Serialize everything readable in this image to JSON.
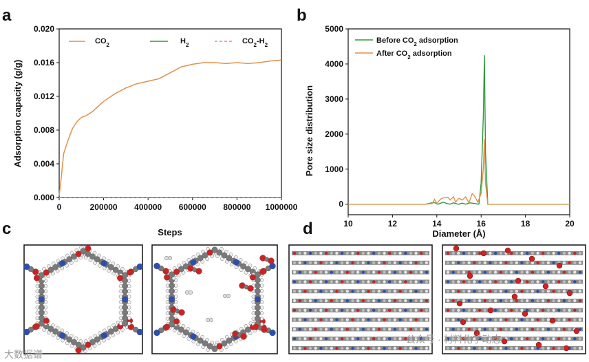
{
  "panel_labels": {
    "a": "a",
    "b": "b",
    "c": "c",
    "d": "d"
  },
  "colors": {
    "co2": "#e0904a",
    "h2": "#2e9a3c",
    "mix": "#e87aa8",
    "axis": "#111111",
    "carbon": "#7a7a7a",
    "oxygen": "#cc2222",
    "nitrogen": "#2a4fb0",
    "hydrogen": "#eeeeee",
    "h2gas": "#dddddd"
  },
  "watermark": {
    "left": "大数据谱",
    "right": "公众号 · 材料化学动态"
  },
  "chart_data": [
    {
      "id": "panel-a",
      "type": "line",
      "title": "",
      "xlabel": "Steps",
      "ylabel": "Adsorption capacity (g/g)",
      "xlim": [
        0,
        1000000
      ],
      "ylim": [
        0.0,
        0.02
      ],
      "xticks": [
        "0",
        "200000",
        "400000",
        "600000",
        "800000",
        "1000000"
      ],
      "yticks": [
        "0.000",
        "0.004",
        "0.008",
        "0.012",
        "0.016",
        "0.020"
      ],
      "legend": {
        "position": "top",
        "entries": [
          "CO2",
          "H2",
          "CO2-H2"
        ]
      },
      "series": [
        {
          "name": "CO2",
          "style": "solid",
          "x": [
            0,
            10000,
            20000,
            40000,
            60000,
            80000,
            100000,
            120000,
            150000,
            200000,
            250000,
            300000,
            350000,
            400000,
            450000,
            500000,
            550000,
            600000,
            650000,
            700000,
            750000,
            800000,
            850000,
            900000,
            950000,
            1000000
          ],
          "y": [
            0.0002,
            0.0025,
            0.0052,
            0.0068,
            0.0082,
            0.009,
            0.0095,
            0.0097,
            0.0102,
            0.0114,
            0.0123,
            0.013,
            0.0135,
            0.0138,
            0.0141,
            0.0148,
            0.0155,
            0.0158,
            0.016,
            0.016,
            0.0159,
            0.016,
            0.0159,
            0.016,
            0.0162,
            0.0163
          ]
        },
        {
          "name": "H2",
          "style": "solid",
          "x": [
            0,
            1000000
          ],
          "y": [
            0.0,
            0.0
          ]
        },
        {
          "name": "CO2-H2",
          "style": "dashed",
          "x": [
            0,
            1000000
          ],
          "y": [
            0.0,
            0.0
          ]
        }
      ]
    },
    {
      "id": "panel-b",
      "type": "line",
      "title": "",
      "xlabel": "Diameter (Å)",
      "ylabel": "Pore size distribution",
      "xlim": [
        10,
        20
      ],
      "ylim": [
        -300,
        5000
      ],
      "xticks": [
        "10",
        "12",
        "14",
        "16",
        "18",
        "20"
      ],
      "yticks": [
        "0",
        "1000",
        "2000",
        "3000",
        "4000",
        "5000"
      ],
      "legend": {
        "position": "top-left",
        "entries": [
          "Before CO2 adsorption",
          "After    CO2 adsorption"
        ]
      },
      "series": [
        {
          "name": "Before CO2 adsorption",
          "x": [
            10,
            13.5,
            13.85,
            13.95,
            14.05,
            14.3,
            14.45,
            14.6,
            14.75,
            14.9,
            15.0,
            15.15,
            15.3,
            15.5,
            15.7,
            15.9,
            16.0,
            16.1,
            16.15,
            16.2,
            16.3,
            20
          ],
          "y": [
            0,
            0,
            50,
            30,
            0,
            60,
            20,
            0,
            40,
            10,
            0,
            30,
            0,
            40,
            20,
            0,
            600,
            2500,
            4250,
            1500,
            0,
            0
          ]
        },
        {
          "name": "After    CO2 adsorption",
          "x": [
            10,
            13.5,
            13.8,
            13.9,
            14.0,
            14.2,
            14.3,
            14.5,
            14.6,
            14.75,
            14.85,
            15.0,
            15.15,
            15.3,
            15.45,
            15.6,
            15.7,
            15.85,
            16.0,
            16.1,
            16.15,
            16.2,
            16.3,
            20
          ],
          "y": [
            0,
            0,
            20,
            140,
            30,
            160,
            180,
            200,
            120,
            210,
            60,
            170,
            120,
            210,
            40,
            300,
            240,
            60,
            300,
            1000,
            1850,
            600,
            0,
            0
          ]
        }
      ]
    }
  ]
}
